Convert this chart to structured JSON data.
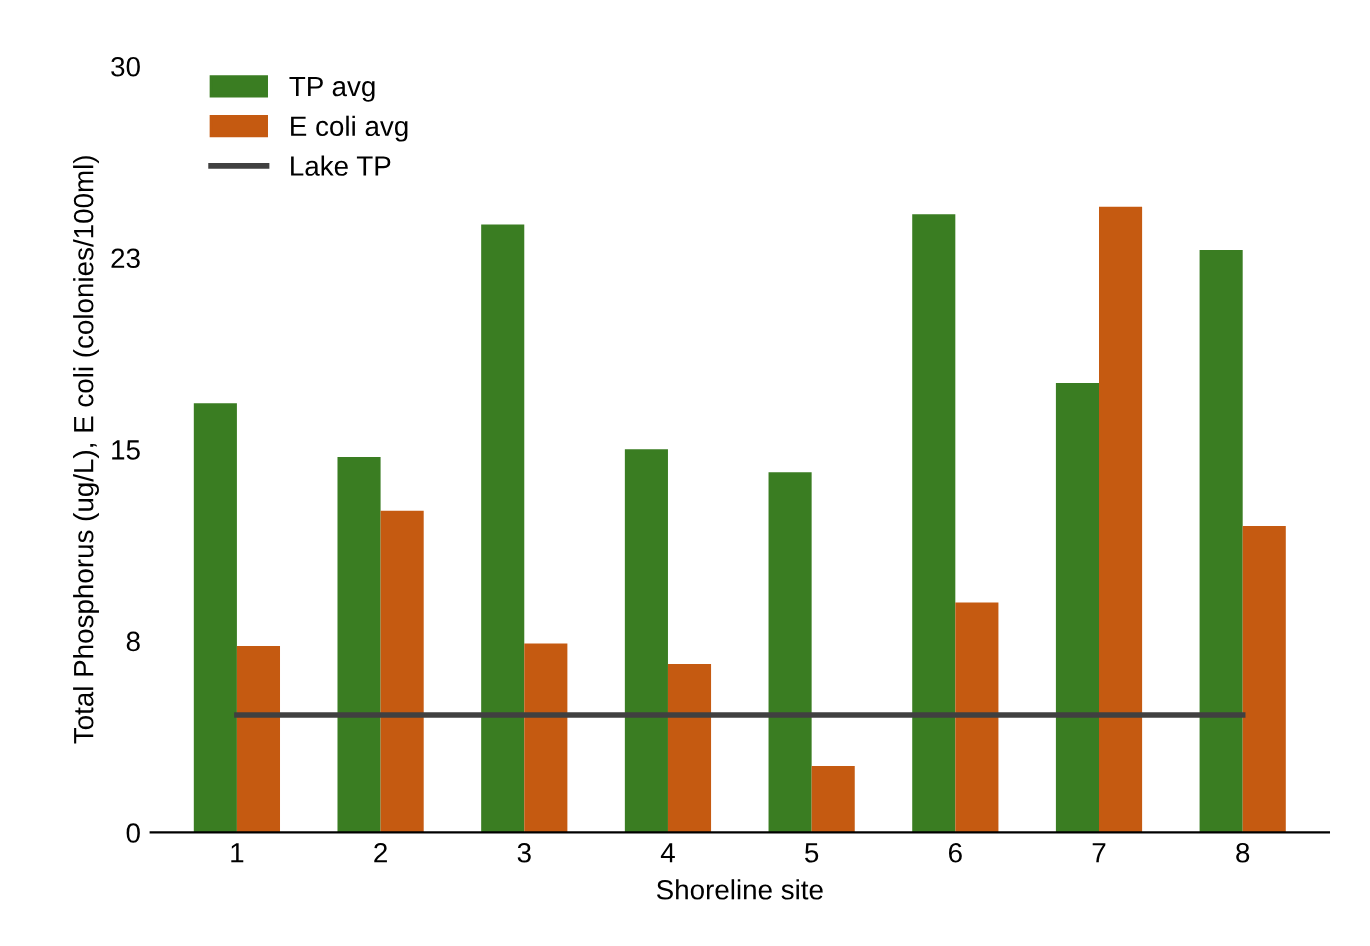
{
  "chart_data": {
    "type": "bar",
    "xlabel": "Shoreline site",
    "ylabel": "Total Phosphorus (ug/L), E coli (colonies/100ml)",
    "categories": [
      "1",
      "2",
      "3",
      "4",
      "5",
      "6",
      "7",
      "8"
    ],
    "series": [
      {
        "name": "TP avg",
        "color": "#3a7d22",
        "values": [
          16.8,
          14.7,
          23.8,
          15.0,
          14.1,
          24.2,
          17.6,
          22.8
        ]
      },
      {
        "name": "E coli avg",
        "color": "#c55a11",
        "values": [
          7.3,
          12.6,
          7.4,
          6.6,
          2.6,
          9.0,
          24.5,
          12.0
        ]
      },
      {
        "name": "Lake TP",
        "type": "line",
        "color": "#404040",
        "values": [
          4.6,
          4.6,
          4.6,
          4.6,
          4.6,
          4.6,
          4.6,
          4.6
        ]
      }
    ],
    "ylim": [
      0,
      30
    ],
    "yticks": [
      0,
      {
        "value": 7.5,
        "label": "8"
      },
      15,
      {
        "value": 22.5,
        "label": "23"
      },
      30
    ],
    "legend": "top left",
    "grid": false
  }
}
